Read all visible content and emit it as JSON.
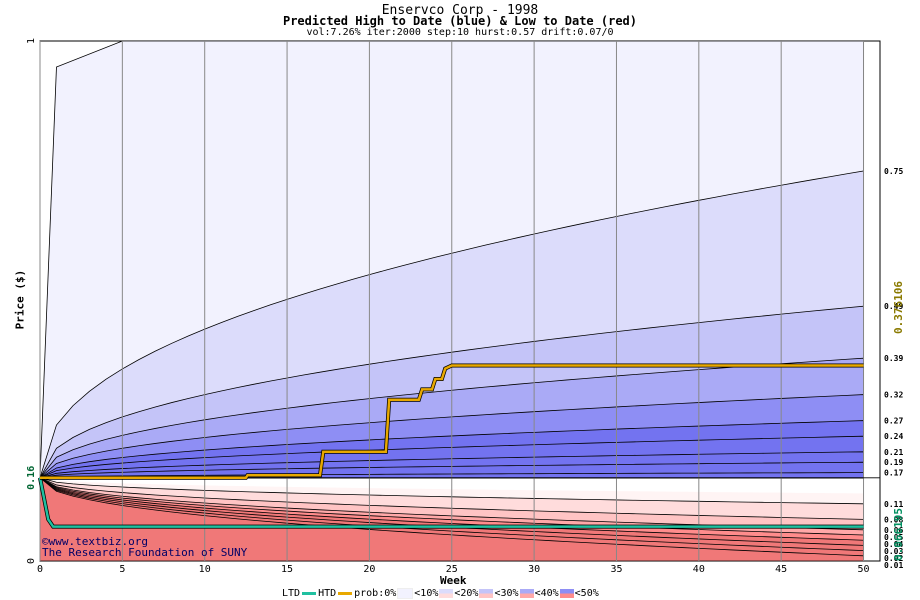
{
  "chart_data": {
    "type": "area",
    "title": "Enservco Corp - 1998",
    "subtitle": "Predicted High to Date (blue) &  Low to Date (red)",
    "params": "vol:7.26% iter:2000 step:10 hurst:0.57 drift:0.07/0",
    "xlabel": "Week",
    "ylabel": "Price ($)",
    "xlim": [
      0,
      51
    ],
    "ylim": [
      0,
      1
    ],
    "x_ticks": [
      0,
      5,
      10,
      15,
      20,
      25,
      30,
      35,
      40,
      45,
      50
    ],
    "y_ticks": [
      0,
      0.16,
      1
    ],
    "start_price": 0.16,
    "upper_percentile_levels": [
      0.75,
      0.49,
      0.39,
      0.32,
      0.27,
      0.24,
      0.21,
      0.19,
      0.17
    ],
    "lower_percentile_levels": [
      0.11,
      0.08,
      0.06,
      0.05,
      0.04,
      0.03,
      0.02,
      0.01
    ],
    "right_labels": [
      "0.75",
      "0.49",
      "0.39",
      "0.32",
      "0.27",
      "0.24",
      "0.21",
      "0.19",
      "0.17",
      "0.11",
      "0.08",
      "0.06",
      "0.05",
      "0.04",
      "0.03",
      "0.02",
      "0.01"
    ],
    "htd_series": {
      "name": "HTD",
      "x": [
        0,
        1,
        12.5,
        12.6,
        17,
        17.2,
        21,
        21.2,
        23,
        23.2,
        23.8,
        24,
        24.4,
        24.6,
        25,
        50
      ],
      "y": [
        0.16,
        0.16,
        0.16,
        0.165,
        0.165,
        0.21,
        0.21,
        0.31,
        0.31,
        0.33,
        0.33,
        0.35,
        0.35,
        0.37,
        0.376,
        0.376
      ]
    },
    "ltd_series": {
      "name": "LTD",
      "x": [
        0,
        0.5,
        0.8,
        50
      ],
      "y": [
        0.16,
        0.08,
        0.066,
        0.066
      ]
    },
    "htd_value": "0.376106",
    "ltd_value": "0.066195",
    "colors": {
      "bands_blue": [
        "#f2f2fe",
        "#dcdcfb",
        "#c4c4f8",
        "#aaaaf6",
        "#8e8ef4",
        "#7373f0"
      ],
      "bands_red": [
        "#fff0f0",
        "#ffdcdc",
        "#ffc4c4",
        "#ffa8a8",
        "#ff8c8c",
        "#f07878"
      ],
      "htd": "#e8a800",
      "ltd": "#20c0a0",
      "grid": "#888888"
    }
  },
  "legend": {
    "ltd": "LTD",
    "htd": "HTD",
    "prob": "prob:0%",
    "b10": "<10%",
    "b20": "<20%",
    "b30": "<30%",
    "b40": "<40%",
    "b50": "<50%"
  },
  "credit": {
    "line1": "©www.textbiz.org",
    "line2": "The Research Foundation of SUNY"
  }
}
